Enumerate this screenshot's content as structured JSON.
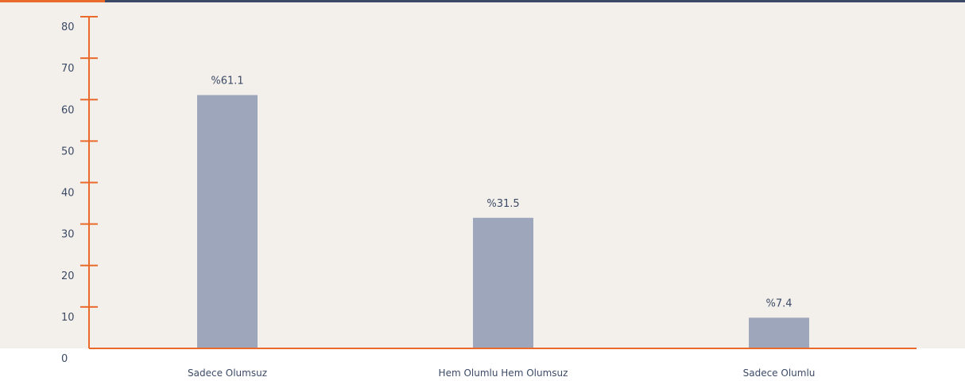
{
  "colors": {
    "background": "#f3f0eb",
    "axis": "#ea6a2c",
    "bar": "#9ea6bc",
    "text": "#3c4a66",
    "top_line": "#3c4a66",
    "top_accent": "#ea6a2c"
  },
  "chart_data": {
    "type": "bar",
    "title": "",
    "xlabel": "",
    "ylabel": "",
    "categories": [
      "Sadece Olumsuz",
      "Hem Olumlu Hem Olumsuz",
      "Sadece Olumlu"
    ],
    "values": [
      61.1,
      31.5,
      7.4
    ],
    "value_labels": [
      "%61.1",
      "%31.5",
      "%7.4"
    ],
    "ylim": [
      0,
      80
    ],
    "yticks": [
      0,
      10,
      20,
      30,
      40,
      50,
      60,
      70,
      80
    ],
    "grid": false,
    "legend": "none"
  }
}
